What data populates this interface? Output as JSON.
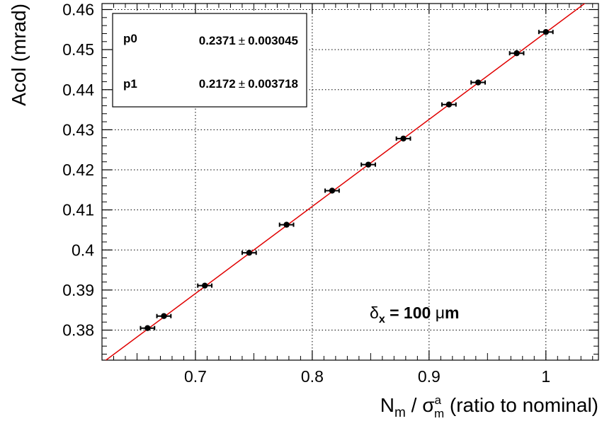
{
  "chart_data": {
    "type": "scatter",
    "xlabel": {
      "main": "N",
      "main_sub": "m",
      "sep": " / ",
      "sigma": "σ",
      "sigma_sup": "a",
      "sigma_sub": "m",
      "suffix": " (ratio to nominal)"
    },
    "ylabel": "Acol (mrad)",
    "xlim": [
      0.62,
      1.045
    ],
    "ylim": [
      0.3725,
      0.4615
    ],
    "x_ticks": [
      0.7,
      0.8,
      0.9,
      1.0
    ],
    "x_tick_labels": [
      "0.7",
      "0.8",
      "0.9",
      "1"
    ],
    "y_ticks": [
      0.38,
      0.39,
      0.4,
      0.41,
      0.42,
      0.43,
      0.44,
      0.45,
      0.46
    ],
    "y_tick_labels": [
      "0.38",
      "0.39",
      "0.4",
      "0.41",
      "0.42",
      "0.43",
      "0.44",
      "0.45",
      "0.46"
    ],
    "grid": true,
    "points": [
      {
        "x": 0.659,
        "y": 0.3805,
        "xerr": 0.006
      },
      {
        "x": 0.673,
        "y": 0.3835,
        "xerr": 0.006
      },
      {
        "x": 0.708,
        "y": 0.3911,
        "xerr": 0.006
      },
      {
        "x": 0.746,
        "y": 0.3993,
        "xerr": 0.006
      },
      {
        "x": 0.778,
        "y": 0.4063,
        "xerr": 0.006
      },
      {
        "x": 0.817,
        "y": 0.4148,
        "xerr": 0.006
      },
      {
        "x": 0.848,
        "y": 0.4213,
        "xerr": 0.006
      },
      {
        "x": 0.878,
        "y": 0.4278,
        "xerr": 0.006
      },
      {
        "x": 0.917,
        "y": 0.4363,
        "xerr": 0.006
      },
      {
        "x": 0.942,
        "y": 0.4418,
        "xerr": 0.006
      },
      {
        "x": 0.975,
        "y": 0.4491,
        "xerr": 0.006
      },
      {
        "x": 1.0,
        "y": 0.4544,
        "xerr": 0.006
      }
    ],
    "fit": {
      "p0": 0.2371,
      "p1": 0.2172
    },
    "stats": [
      {
        "key": "p0",
        "value": "0.2371",
        "pm": "±",
        "error": "0.003045"
      },
      {
        "key": "p1",
        "value": "0.2172",
        "pm": "±",
        "error": "0.003718"
      }
    ],
    "annotation": {
      "delta": "δ",
      "sub": "x",
      "text": " = 100 ",
      "mu": "μ",
      "unit": "m"
    },
    "colors": {
      "fit_line": "#e00000",
      "marker": "#000000",
      "grid": "#000000"
    }
  }
}
